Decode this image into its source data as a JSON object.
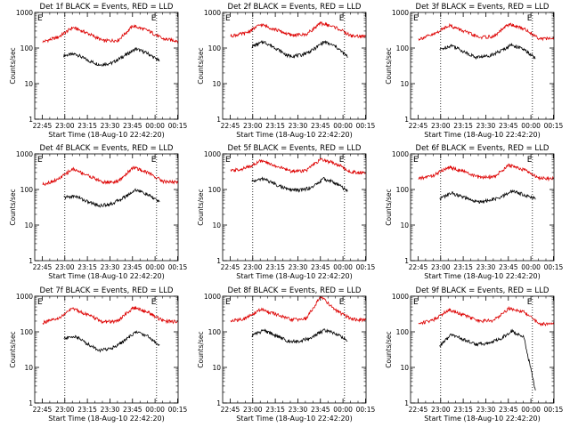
{
  "colors": {
    "events": "#000000",
    "lld": "#dd0000",
    "axis": "#000000"
  },
  "common": {
    "xlabel": "Start Time (18-Aug-10 22:42:20)",
    "ylabel": "Counts/sec",
    "x_ticks": [
      "22:45",
      "23:00",
      "23:15",
      "23:30",
      "23:45",
      "00:00",
      "00:15"
    ],
    "y_ticks": [
      "1",
      "10",
      "100",
      "1000"
    ],
    "xlim_minutes": [
      -2.33,
      93.0
    ],
    "ylim": [
      1,
      1000
    ],
    "y_scale": "log",
    "markers": [
      "E",
      "E"
    ],
    "vline_minutes": [
      17.67,
      78.67
    ]
  },
  "chart_data": [
    {
      "type": "line",
      "title": "Det 1f BLACK = Events, RED = LLD",
      "series": [
        {
          "name": "Events",
          "x": [
            17,
            25,
            33,
            41,
            49,
            57,
            65,
            73,
            81
          ],
          "y": [
            62,
            68,
            45,
            34,
            38,
            60,
            95,
            70,
            42
          ]
        },
        {
          "name": "LLD",
          "x": [
            3,
            13,
            23,
            33,
            43,
            53,
            63,
            73,
            83,
            93
          ],
          "y": [
            150,
            200,
            380,
            260,
            160,
            165,
            420,
            310,
            180,
            160
          ]
        }
      ]
    },
    {
      "type": "line",
      "title": "Det 2f BLACK = Events, RED = LLD",
      "series": [
        {
          "name": "Events",
          "x": [
            17,
            25,
            33,
            41,
            49,
            57,
            65,
            73,
            81
          ],
          "y": [
            110,
            150,
            100,
            60,
            62,
            85,
            150,
            110,
            55
          ]
        },
        {
          "name": "LLD",
          "x": [
            3,
            13,
            23,
            33,
            43,
            53,
            63,
            73,
            83,
            93
          ],
          "y": [
            220,
            260,
            460,
            330,
            230,
            240,
            500,
            380,
            220,
            210
          ]
        }
      ]
    },
    {
      "type": "line",
      "title": "Det 3f BLACK = Events, RED = LLD",
      "series": [
        {
          "name": "Events",
          "x": [
            17,
            25,
            33,
            41,
            49,
            57,
            65,
            73,
            81
          ],
          "y": [
            90,
            120,
            80,
            55,
            60,
            80,
            125,
            90,
            50
          ]
        },
        {
          "name": "LLD",
          "x": [
            3,
            13,
            23,
            33,
            43,
            53,
            63,
            73,
            83,
            93
          ],
          "y": [
            180,
            240,
            440,
            300,
            200,
            210,
            470,
            350,
            190,
            180
          ]
        }
      ]
    },
    {
      "type": "line",
      "title": "Det 4f BLACK = Events, RED = LLD",
      "series": [
        {
          "name": "Events",
          "x": [
            17,
            25,
            33,
            41,
            49,
            57,
            65,
            73,
            81
          ],
          "y": [
            60,
            65,
            45,
            35,
            40,
            60,
            100,
            70,
            45
          ]
        },
        {
          "name": "LLD",
          "x": [
            3,
            13,
            23,
            33,
            43,
            53,
            63,
            73,
            83,
            93
          ],
          "y": [
            140,
            190,
            380,
            250,
            160,
            165,
            420,
            300,
            170,
            160
          ]
        }
      ]
    },
    {
      "type": "line",
      "title": "Det 5f BLACK = Events, RED = LLD",
      "series": [
        {
          "name": "Events",
          "x": [
            17,
            25,
            33,
            41,
            49,
            57,
            65,
            73,
            81
          ],
          "y": [
            170,
            200,
            140,
            100,
            95,
            115,
            200,
            150,
            90
          ]
        },
        {
          "name": "LLD",
          "x": [
            3,
            13,
            23,
            33,
            43,
            53,
            63,
            73,
            83,
            93
          ],
          "y": [
            330,
            400,
            640,
            460,
            330,
            340,
            700,
            540,
            310,
            300
          ]
        }
      ]
    },
    {
      "type": "line",
      "title": "Det 6f BLACK = Events, RED = LLD",
      "series": [
        {
          "name": "Events",
          "x": [
            17,
            25,
            33,
            41,
            49,
            57,
            65,
            73,
            81
          ],
          "y": [
            55,
            80,
            60,
            45,
            48,
            58,
            90,
            72,
            55
          ]
        },
        {
          "name": "LLD",
          "x": [
            3,
            13,
            23,
            33,
            43,
            53,
            63,
            73,
            83,
            93
          ],
          "y": [
            200,
            250,
            430,
            320,
            220,
            225,
            480,
            360,
            210,
            200
          ]
        }
      ]
    },
    {
      "type": "line",
      "title": "Det 7f BLACK = Events, RED = LLD",
      "series": [
        {
          "name": "Events",
          "x": [
            17,
            25,
            33,
            41,
            49,
            57,
            65,
            73,
            81
          ],
          "y": [
            65,
            75,
            45,
            30,
            35,
            55,
            100,
            75,
            40
          ]
        },
        {
          "name": "LLD",
          "x": [
            3,
            13,
            23,
            33,
            43,
            53,
            63,
            73,
            83,
            93
          ],
          "y": [
            180,
            230,
            460,
            300,
            190,
            200,
            480,
            360,
            200,
            190
          ]
        }
      ]
    },
    {
      "type": "line",
      "title": "Det 8f BLACK = Events, RED = LLD",
      "series": [
        {
          "name": "Events",
          "x": [
            17,
            25,
            33,
            41,
            49,
            57,
            65,
            73,
            81
          ],
          "y": [
            80,
            110,
            80,
            55,
            55,
            70,
            110,
            90,
            55
          ]
        },
        {
          "name": "LLD",
          "x": [
            3,
            13,
            23,
            33,
            43,
            53,
            63,
            73,
            83,
            93
          ],
          "y": [
            200,
            240,
            430,
            310,
            220,
            230,
            1000,
            400,
            230,
            210
          ]
        }
      ]
    },
    {
      "type": "line",
      "title": "Det 9f BLACK = Events, RED = LLD",
      "series": [
        {
          "name": "Events",
          "x": [
            17,
            25,
            33,
            41,
            49,
            57,
            65,
            73,
            81
          ],
          "y": [
            40,
            85,
            60,
            45,
            48,
            62,
            105,
            70,
            2
          ]
        },
        {
          "name": "LLD",
          "x": [
            3,
            13,
            23,
            33,
            43,
            53,
            63,
            73,
            83,
            93
          ],
          "y": [
            170,
            220,
            420,
            300,
            200,
            210,
            460,
            360,
            170,
            160
          ]
        }
      ]
    }
  ]
}
